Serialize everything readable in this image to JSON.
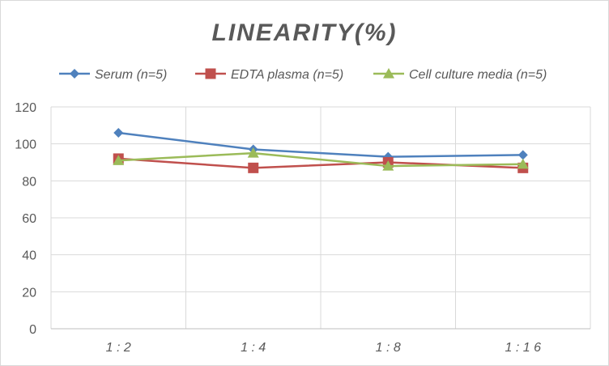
{
  "chart_data": {
    "type": "line",
    "title": "LINEARITY(%)",
    "categories": [
      "1:2",
      "1:4",
      "1:8",
      "1:16"
    ],
    "ylim": [
      0,
      120
    ],
    "yticks": [
      0,
      20,
      40,
      60,
      80,
      100,
      120
    ],
    "grid": true,
    "legend_position": "top",
    "series": [
      {
        "name": "Serum (n=5)",
        "values": [
          106,
          97,
          93,
          94
        ],
        "color": "#4F81BD",
        "marker": "diamond"
      },
      {
        "name": "EDTA plasma (n=5)",
        "values": [
          92,
          87,
          90,
          87
        ],
        "color": "#C0504D",
        "marker": "square"
      },
      {
        "name": "Cell culture media (n=5)",
        "values": [
          91,
          95,
          88,
          89
        ],
        "color": "#9BBB59",
        "marker": "triangle"
      }
    ]
  }
}
